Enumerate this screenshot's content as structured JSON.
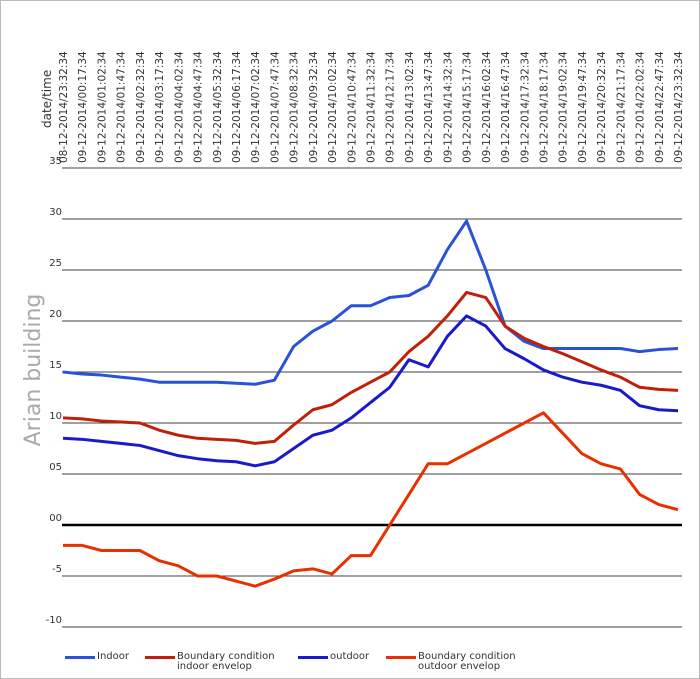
{
  "chart_data": {
    "type": "line",
    "x_label": "date/time",
    "y_label": "Arian building",
    "categories": [
      "08-12-2014/23:32:34",
      "09-12-2014/00:17:34",
      "09-12-2014/01:02:34",
      "09-12-2014/01:47:34",
      "09-12-2014/02:32:34",
      "09-12-2014/03:17:34",
      "09-12-2014/04:02:34",
      "09-12-2014/04:47:34",
      "09-12-2014/05:32:34",
      "09-12-2014/06:17:34",
      "09-12-2014/07:02:34",
      "09-12-2014/07:47:34",
      "09-12-2014/08:32:34",
      "09-12-2014/09:32:34",
      "09-12-2014/10:02:34",
      "09-12-2014/10:47:34",
      "09-12-2014/11:32:34",
      "09-12-2014/12:17:34",
      "09-12-2014/13:02:34",
      "09-12-2014/13:47:34",
      "09-12-2014/14:32:34",
      "09-12-2014/15:17:34",
      "09-12-2014/16:02:34",
      "09-12-2014/16:47:34",
      "09-12-2014/17:32:34",
      "09-12-2014/18:17:34",
      "09-12-2014/19:02:34",
      "09-12-2014/19:47:34",
      "09-12-2014/20:32:34",
      "09-12-2014/21:17:34",
      "09-12-2014/22:02:34",
      "09-12-2014/22:47:34",
      "09-12-2014/23:32:34"
    ],
    "series": [
      {
        "name": "Indoor",
        "color": "#2a52d8",
        "values": [
          15.0,
          14.8,
          14.7,
          14.5,
          14.3,
          14.0,
          14.0,
          14.0,
          14.0,
          13.9,
          13.8,
          14.2,
          17.5,
          19.0,
          20.0,
          21.5,
          21.5,
          22.3,
          22.5,
          23.5,
          27.0,
          29.8,
          25.0,
          19.5,
          18.0,
          17.3,
          17.3,
          17.3,
          17.3,
          17.3,
          17.0,
          17.2,
          17.3
        ]
      },
      {
        "name": "Boundary condition indoor envelop",
        "color": "#c0200a",
        "values": [
          10.5,
          10.4,
          10.2,
          10.1,
          10.0,
          9.3,
          8.8,
          8.5,
          8.4,
          8.3,
          8.0,
          8.2,
          9.8,
          11.3,
          11.8,
          13.0,
          14.0,
          15.0,
          17.0,
          18.5,
          20.5,
          22.8,
          22.3,
          19.5,
          18.3,
          17.5,
          16.8,
          16.0,
          15.2,
          14.5,
          13.5,
          13.3,
          13.2
        ]
      },
      {
        "name": "outdoor",
        "color": "#1a1acc",
        "values": [
          8.5,
          8.4,
          8.2,
          8.0,
          7.8,
          7.3,
          6.8,
          6.5,
          6.3,
          6.2,
          5.8,
          6.2,
          7.5,
          8.8,
          9.3,
          10.5,
          12.0,
          13.5,
          16.2,
          15.5,
          18.5,
          20.5,
          19.5,
          17.3,
          16.3,
          15.2,
          14.5,
          14.0,
          13.7,
          13.2,
          11.7,
          11.3,
          11.2
        ]
      },
      {
        "name": "Boundary condition outdoor envelop",
        "color": "#e83000",
        "values": [
          -2,
          -2,
          -2.5,
          -2.5,
          -2.5,
          -3.5,
          -4,
          -5,
          -5,
          -5.5,
          -6,
          -5.3,
          -4.5,
          -4.3,
          -4.8,
          -3,
          -3,
          0,
          3,
          6,
          6,
          7,
          8,
          9,
          10,
          11,
          9,
          7,
          6,
          5.5,
          3,
          2,
          1.5
        ]
      }
    ],
    "ylim": [
      -10,
      35
    ],
    "yticks": [
      35,
      30,
      25,
      20,
      15,
      10,
      {
        "value": 5,
        "label": "05"
      },
      {
        "value": 0,
        "label": "00"
      },
      -5,
      -10
    ],
    "grid": true
  }
}
